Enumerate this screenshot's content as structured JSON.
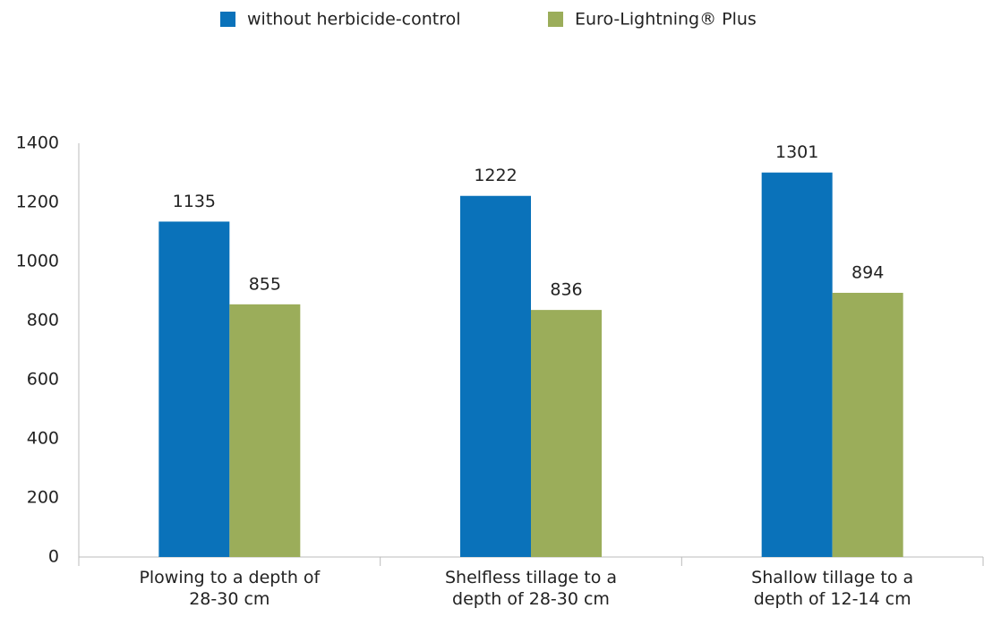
{
  "chart_data": {
    "type": "bar",
    "categories": [
      [
        "Plowing to a depth of",
        "28-30 cm"
      ],
      [
        "Shelfless tillage to a",
        "depth of 28-30 cm"
      ],
      [
        "Shallow tillage to a",
        "depth of 12-14 cm"
      ]
    ],
    "series": [
      {
        "name": "without herbicide-control",
        "color": "#0a72ba",
        "values": [
          1135,
          1222,
          1301
        ]
      },
      {
        "name": "Euro-Lightning® Plus",
        "color": "#9bad5a",
        "values": [
          855,
          836,
          894
        ]
      }
    ],
    "ylim": [
      0,
      1400
    ],
    "yticks": [
      0,
      200,
      400,
      600,
      800,
      1000,
      1200,
      1400
    ],
    "grid": false,
    "legend": "top"
  }
}
